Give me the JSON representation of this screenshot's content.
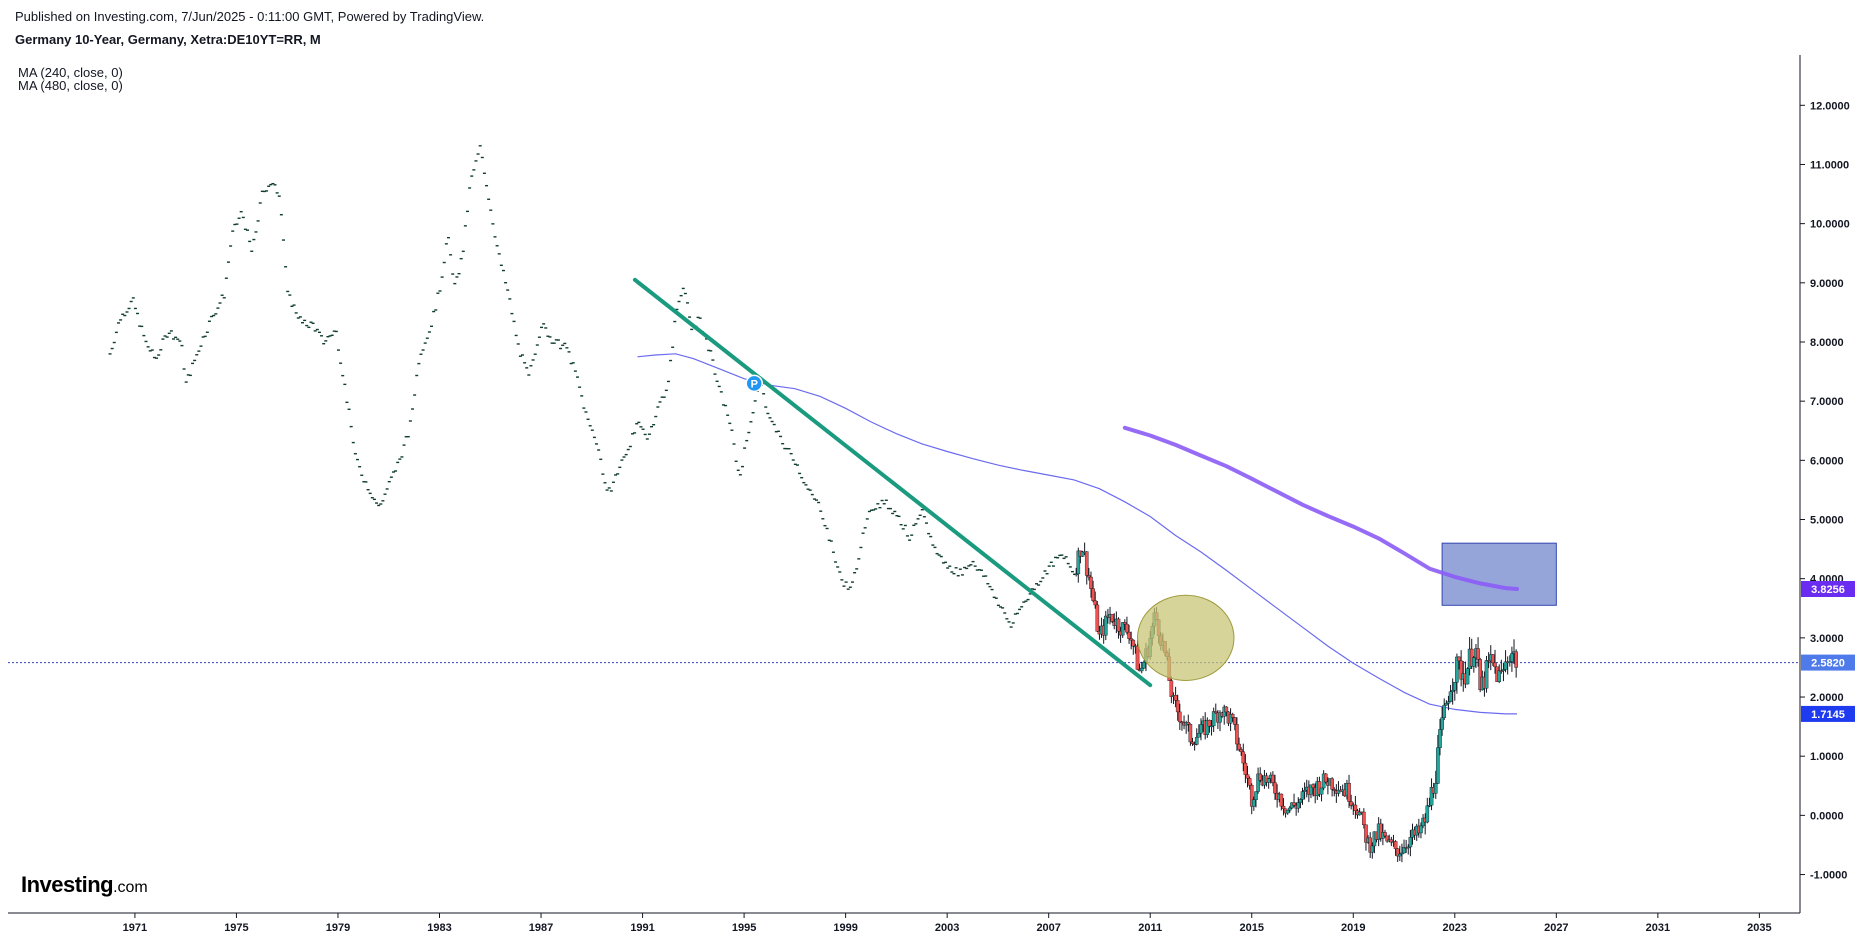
{
  "header": {
    "published": "Published on Investing.com, 7/Jun/2025 - 0:11:00 GMT, Powered by TradingView.",
    "title": "Germany 10-Year, Germany, Xetra:DE10YT=RR, M"
  },
  "indicators": [
    {
      "label": "MA (240, close, 0)"
    },
    {
      "label": "MA (480, close, 0)"
    }
  ],
  "logo": {
    "bold": "Investing",
    "light": ".com"
  },
  "colors": {
    "up": "#26a69a",
    "down": "#ef5350",
    "wick": "#131722",
    "trendline": "#1a9a7f",
    "ma240": "#6b6bf0",
    "ma480": "#8b5cf6",
    "box_fill": "#7c8fcf",
    "box_stroke": "#3346b0",
    "ellipse_fill": "#c8c577",
    "ellipse_stroke": "#9e9a3c",
    "price_line": "#3346b0",
    "badge_last": "#4f7bea",
    "badge_ma240": "#1e3bf0",
    "badge_ma480": "#6a2cf0",
    "axis": "#131722"
  },
  "chart_data": {
    "type": "candlestick",
    "interval": "M",
    "xlim": [
      1966.0,
      2036.6
    ],
    "ylim": [
      -1.65,
      12.85
    ],
    "x_ticks": [
      "1971",
      "1975",
      "1979",
      "1983",
      "1987",
      "1991",
      "1995",
      "1999",
      "2003",
      "2007",
      "2011",
      "2015",
      "2019",
      "2023",
      "2027",
      "2031",
      "2035"
    ],
    "y_ticks": [
      "12.0000",
      "11.0000",
      "10.0000",
      "9.0000",
      "8.0000",
      "7.0000",
      "6.0000",
      "5.0000",
      "4.0000",
      "3.0000",
      "2.0000",
      "1.0000",
      "0.0000",
      "-1.0000"
    ],
    "last_price": 2.582,
    "badges": [
      {
        "label": "3.8256",
        "value": 3.8256,
        "series": "MA (480, close, 0)"
      },
      {
        "label": "2.5820",
        "value": 2.582,
        "series": "last"
      },
      {
        "label": "1.7145",
        "value": 1.7145,
        "series": "MA (240, close, 0)"
      }
    ],
    "price_anchors": [
      [
        1970.0,
        7.8
      ],
      [
        1970.4,
        8.4
      ],
      [
        1970.9,
        8.7
      ],
      [
        1971.4,
        8.0
      ],
      [
        1971.8,
        7.7
      ],
      [
        1972.3,
        8.2
      ],
      [
        1972.8,
        8.0
      ],
      [
        1973.0,
        7.3
      ],
      [
        1973.6,
        8.0
      ],
      [
        1974.0,
        8.4
      ],
      [
        1974.5,
        8.8
      ],
      [
        1974.8,
        9.8
      ],
      [
        1975.2,
        10.2
      ],
      [
        1975.6,
        9.5
      ],
      [
        1976.0,
        10.5
      ],
      [
        1976.3,
        10.7
      ],
      [
        1976.7,
        10.5
      ],
      [
        1977.0,
        8.8
      ],
      [
        1977.6,
        8.3
      ],
      [
        1978.0,
        8.3
      ],
      [
        1978.4,
        8.0
      ],
      [
        1978.9,
        8.2
      ],
      [
        1979.2,
        7.4
      ],
      [
        1979.7,
        6.0
      ],
      [
        1980.0,
        5.7
      ],
      [
        1980.6,
        5.2
      ],
      [
        1981.0,
        5.6
      ],
      [
        1981.4,
        6.0
      ],
      [
        1981.8,
        6.5
      ],
      [
        1982.2,
        7.8
      ],
      [
        1982.6,
        8.2
      ],
      [
        1983.0,
        8.9
      ],
      [
        1983.3,
        9.8
      ],
      [
        1983.6,
        8.9
      ],
      [
        1983.9,
        9.5
      ],
      [
        1984.2,
        10.7
      ],
      [
        1984.6,
        11.3
      ],
      [
        1984.9,
        10.5
      ],
      [
        1985.3,
        9.5
      ],
      [
        1985.7,
        8.8
      ],
      [
        1986.1,
        7.9
      ],
      [
        1986.5,
        7.4
      ],
      [
        1987.0,
        8.3
      ],
      [
        1987.5,
        8.0
      ],
      [
        1988.0,
        7.9
      ],
      [
        1988.4,
        7.4
      ],
      [
        1988.8,
        6.7
      ],
      [
        1989.2,
        6.3
      ],
      [
        1989.6,
        5.4
      ],
      [
        1990.0,
        5.8
      ],
      [
        1990.4,
        6.2
      ],
      [
        1990.8,
        6.6
      ],
      [
        1991.2,
        6.4
      ],
      [
        1991.6,
        6.9
      ],
      [
        1992.0,
        7.3
      ],
      [
        1992.3,
        8.5
      ],
      [
        1992.6,
        9.0
      ],
      [
        1992.9,
        8.2
      ],
      [
        1993.2,
        8.4
      ],
      [
        1993.6,
        7.9
      ],
      [
        1994.0,
        7.2
      ],
      [
        1994.4,
        6.7
      ],
      [
        1994.8,
        5.7
      ],
      [
        1995.2,
        6.6
      ],
      [
        1995.6,
        7.3
      ],
      [
        1996.0,
        6.7
      ],
      [
        1996.5,
        6.3
      ],
      [
        1997.0,
        6.0
      ],
      [
        1997.5,
        5.5
      ],
      [
        1998.0,
        5.2
      ],
      [
        1998.4,
        4.6
      ],
      [
        1998.8,
        4.0
      ],
      [
        1999.2,
        3.8
      ],
      [
        1999.6,
        4.6
      ],
      [
        2000.0,
        5.2
      ],
      [
        2000.5,
        5.3
      ],
      [
        2001.0,
        5.1
      ],
      [
        2001.5,
        4.7
      ],
      [
        2002.0,
        5.1
      ],
      [
        2002.5,
        4.5
      ],
      [
        2003.0,
        4.2
      ],
      [
        2003.5,
        4.1
      ],
      [
        2004.0,
        4.3
      ],
      [
        2004.5,
        4.0
      ],
      [
        2005.0,
        3.6
      ],
      [
        2005.5,
        3.2
      ],
      [
        2006.0,
        3.6
      ],
      [
        2006.5,
        3.9
      ],
      [
        2007.0,
        4.2
      ],
      [
        2007.5,
        4.4
      ],
      [
        2008.0,
        4.1
      ],
      [
        2008.3,
        4.6
      ],
      [
        2008.6,
        4.0
      ],
      [
        2009.0,
        3.0
      ],
      [
        2009.4,
        3.4
      ],
      [
        2009.8,
        3.2
      ],
      [
        2010.2,
        3.1
      ],
      [
        2010.6,
        2.4
      ],
      [
        2010.9,
        2.8
      ],
      [
        2011.2,
        3.4
      ],
      [
        2011.6,
        2.7
      ],
      [
        2011.9,
        1.9
      ],
      [
        2012.3,
        1.6
      ],
      [
        2012.6,
        1.3
      ],
      [
        2013.0,
        1.4
      ],
      [
        2013.4,
        1.6
      ],
      [
        2013.8,
        1.8
      ],
      [
        2014.2,
        1.6
      ],
      [
        2014.6,
        1.0
      ],
      [
        2015.0,
        0.3
      ],
      [
        2015.3,
        0.7
      ],
      [
        2015.6,
        0.6
      ],
      [
        2016.0,
        0.4
      ],
      [
        2016.4,
        0.1
      ],
      [
        2016.8,
        0.2
      ],
      [
        2017.2,
        0.4
      ],
      [
        2017.6,
        0.5
      ],
      [
        2018.0,
        0.6
      ],
      [
        2018.4,
        0.5
      ],
      [
        2018.8,
        0.4
      ],
      [
        2019.2,
        0.1
      ],
      [
        2019.6,
        -0.5
      ],
      [
        2020.0,
        -0.3
      ],
      [
        2020.4,
        -0.5
      ],
      [
        2020.8,
        -0.6
      ],
      [
        2021.2,
        -0.4
      ],
      [
        2021.6,
        -0.3
      ],
      [
        2021.9,
        0.0
      ],
      [
        2022.2,
        0.6
      ],
      [
        2022.5,
        1.5
      ],
      [
        2022.8,
        2.2
      ],
      [
        2023.1,
        2.5
      ],
      [
        2023.4,
        2.4
      ],
      [
        2023.8,
        2.9
      ],
      [
        2024.0,
        2.1
      ],
      [
        2024.4,
        2.6
      ],
      [
        2024.8,
        2.3
      ],
      [
        2025.2,
        2.8
      ],
      [
        2025.45,
        2.6
      ]
    ],
    "ma240": [
      [
        1990.8,
        7.75
      ],
      [
        1991.5,
        7.78
      ],
      [
        1992.3,
        7.8
      ],
      [
        1993.0,
        7.72
      ],
      [
        1994.0,
        7.55
      ],
      [
        1995.0,
        7.38
      ],
      [
        1996.0,
        7.27
      ],
      [
        1997.0,
        7.21
      ],
      [
        1998.0,
        7.08
      ],
      [
        1999.0,
        6.88
      ],
      [
        2000.0,
        6.65
      ],
      [
        2001.0,
        6.45
      ],
      [
        2002.0,
        6.28
      ],
      [
        2003.0,
        6.15
      ],
      [
        2004.0,
        6.03
      ],
      [
        2005.0,
        5.92
      ],
      [
        2006.0,
        5.83
      ],
      [
        2007.0,
        5.75
      ],
      [
        2008.0,
        5.67
      ],
      [
        2009.0,
        5.52
      ],
      [
        2010.0,
        5.3
      ],
      [
        2011.0,
        5.05
      ],
      [
        2012.0,
        4.73
      ],
      [
        2013.0,
        4.45
      ],
      [
        2014.0,
        4.14
      ],
      [
        2015.0,
        3.82
      ],
      [
        2016.0,
        3.5
      ],
      [
        2017.0,
        3.18
      ],
      [
        2018.0,
        2.86
      ],
      [
        2019.0,
        2.57
      ],
      [
        2020.0,
        2.32
      ],
      [
        2021.0,
        2.08
      ],
      [
        2022.0,
        1.88
      ],
      [
        2023.0,
        1.79
      ],
      [
        2024.0,
        1.74
      ],
      [
        2025.0,
        1.715
      ],
      [
        2025.45,
        1.7145
      ]
    ],
    "ma480": [
      [
        2010.0,
        6.55
      ],
      [
        2011.0,
        6.42
      ],
      [
        2012.0,
        6.26
      ],
      [
        2013.0,
        6.08
      ],
      [
        2014.0,
        5.9
      ],
      [
        2015.0,
        5.69
      ],
      [
        2016.0,
        5.47
      ],
      [
        2017.0,
        5.25
      ],
      [
        2018.0,
        5.06
      ],
      [
        2019.0,
        4.88
      ],
      [
        2020.0,
        4.68
      ],
      [
        2021.0,
        4.43
      ],
      [
        2022.0,
        4.17
      ],
      [
        2023.0,
        4.03
      ],
      [
        2024.0,
        3.92
      ],
      [
        2025.0,
        3.84
      ],
      [
        2025.45,
        3.8256
      ]
    ],
    "annotations": {
      "trendline": {
        "from": [
          1990.7,
          9.05
        ],
        "to": [
          2011.0,
          2.2
        ]
      },
      "marker": {
        "label": "P",
        "x": 1995.4,
        "y": 7.3
      },
      "ellipse": {
        "cx": 2012.4,
        "cy": 3.0,
        "rx": 1.9,
        "ry": 0.72
      },
      "box": {
        "x0": 2022.5,
        "x1": 2027.0,
        "y0": 3.55,
        "y1": 4.6
      }
    }
  }
}
